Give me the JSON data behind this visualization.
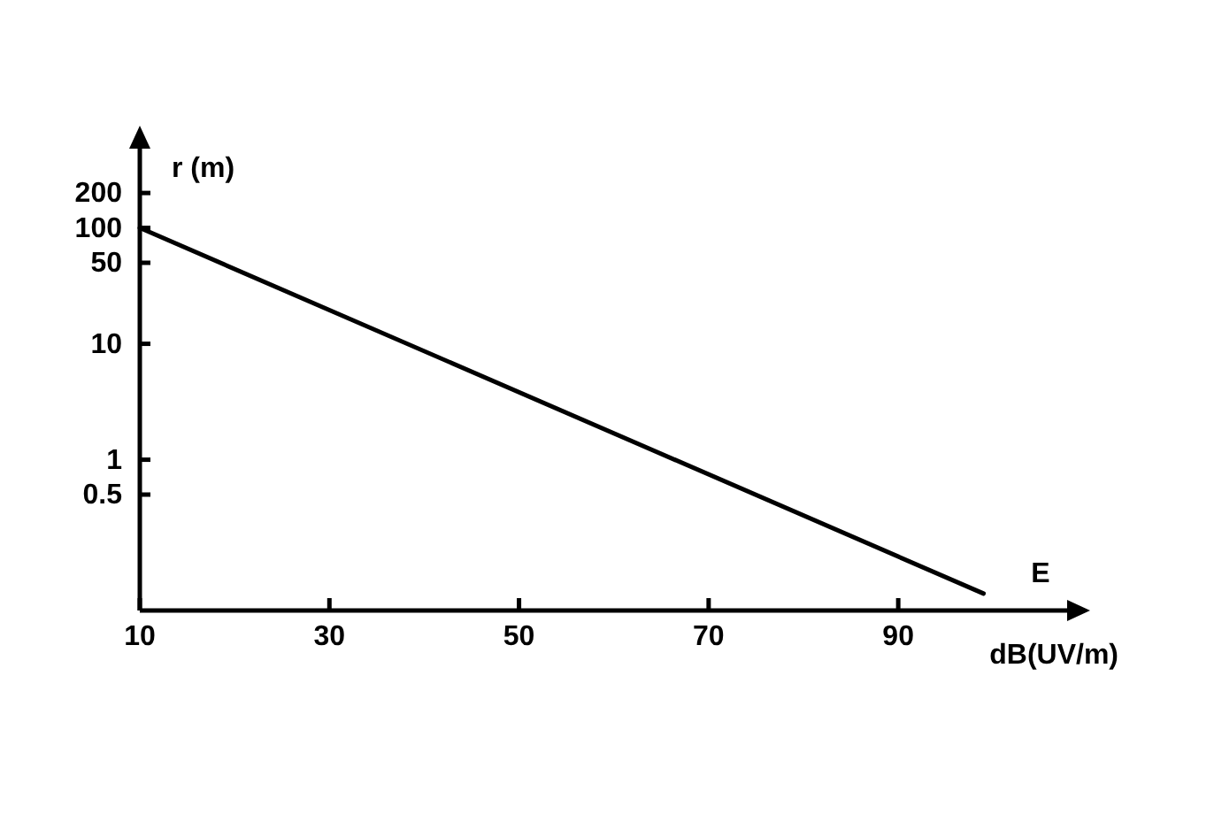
{
  "chart_data": {
    "type": "line",
    "xlabel": "dB(UV/m)",
    "ylabel": "r (m)",
    "annotations": [
      "E"
    ],
    "x": [
      10,
      99
    ],
    "series": [
      {
        "color": "#000000",
        "values": [
          100,
          0.07
        ]
      }
    ],
    "xlim": [
      10,
      108
    ],
    "xticks": [
      10,
      30,
      50,
      70,
      90
    ],
    "ylim": [
      0.05,
      500
    ],
    "yticks": [
      0.5,
      1,
      10,
      50,
      100,
      200
    ],
    "log": "y",
    "line_style": "solid"
  }
}
